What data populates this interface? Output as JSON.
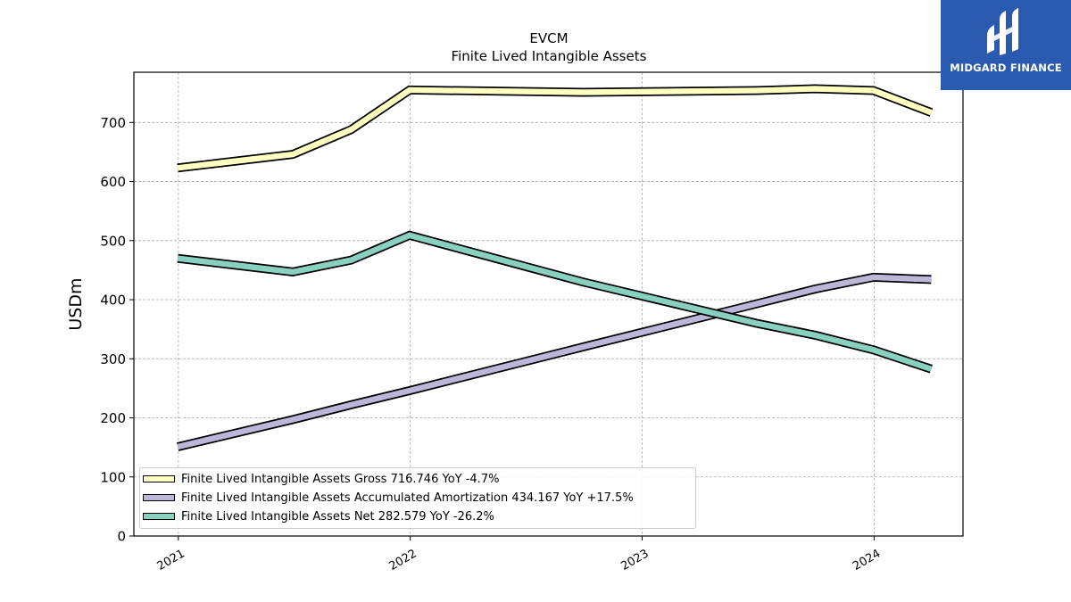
{
  "chart_data": {
    "type": "line",
    "title": "EVCM",
    "subtitle": "Finite Lived Intangible Assets",
    "xlabel": "",
    "ylabel": "USDm",
    "ylim": [
      0,
      785
    ],
    "yticks": [
      0,
      100,
      200,
      300,
      400,
      500,
      600,
      700
    ],
    "xlim": [
      "2020-10-23",
      "2024-05-20"
    ],
    "xticks": [
      "2021-01-01",
      "2022-01-01",
      "2023-01-01",
      "2024-01-01"
    ],
    "xtick_labels": [
      "2021",
      "2022",
      "2023",
      "2024"
    ],
    "grid": true,
    "legend_position": "bottom-left",
    "series": [
      {
        "name": "Finite Lived Intangible Assets Gross",
        "legend_label": "Finite Lived Intangible Assets Gross  716.746 YoY -4.7%",
        "color": "#ffffbf",
        "x": [
          "2020-12-31",
          "2021-06-30",
          "2021-09-30",
          "2021-12-31",
          "2022-09-30",
          "2023-06-30",
          "2023-09-30",
          "2023-12-31",
          "2024-03-31"
        ],
        "values": [
          623,
          646,
          688,
          755,
          751,
          754,
          757,
          754,
          716.746
        ]
      },
      {
        "name": "Finite Lived Intangible Assets Accumulated Amortization",
        "legend_label": "Finite Lived Intangible Assets Accumulated Amortization  434.167 YoY +17.5%",
        "color": "#bcb6d8",
        "x": [
          "2020-12-31",
          "2021-06-30",
          "2021-09-30",
          "2021-12-31",
          "2022-09-30",
          "2023-06-30",
          "2023-09-30",
          "2023-12-31",
          "2024-03-31"
        ],
        "values": [
          151,
          197,
          222,
          246,
          320,
          393,
          418,
          438,
          434.167
        ]
      },
      {
        "name": "Finite Lived Intangible Assets Net",
        "legend_label": "Finite Lived Intangible Assets Net  282.579 YoY -26.2%",
        "color": "#88d0c0",
        "x": [
          "2020-12-31",
          "2021-06-30",
          "2021-09-30",
          "2021-12-31",
          "2022-09-30",
          "2023-06-30",
          "2023-09-30",
          "2023-12-31",
          "2024-03-31"
        ],
        "values": [
          470,
          447,
          467,
          509,
          430,
          360,
          340,
          315,
          282.579
        ]
      }
    ]
  },
  "logo": {
    "text": "MIDGARD FINANCE",
    "color": "#2a5ab0"
  }
}
